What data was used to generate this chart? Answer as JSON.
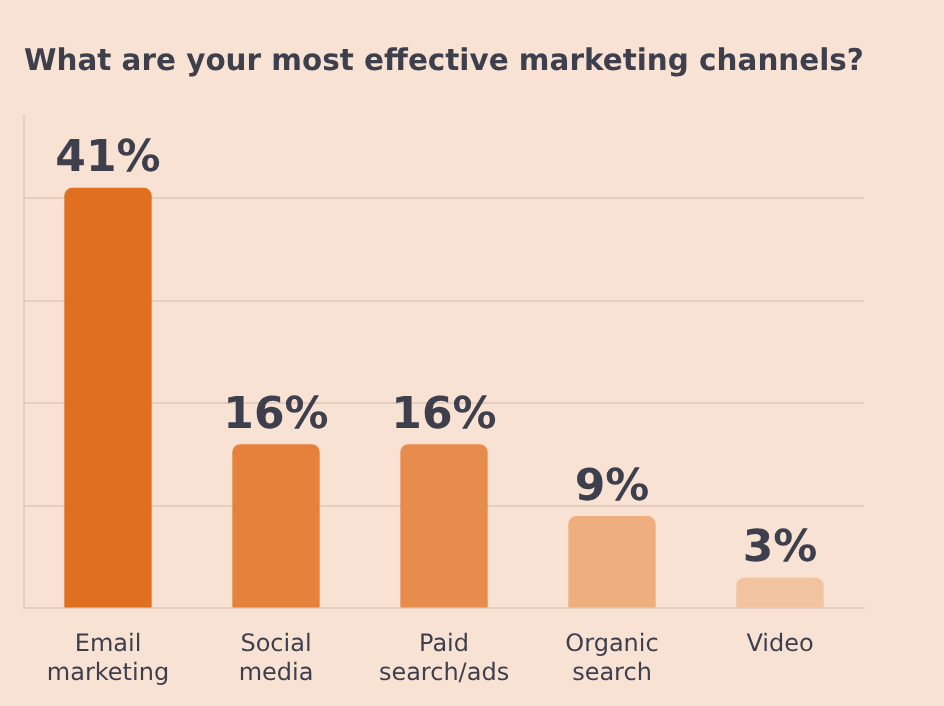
{
  "chart_data": {
    "type": "bar",
    "title": "What are your most effective marketing channels?",
    "categories": [
      "Email marketing",
      "Social media",
      "Paid search/ads",
      "Organic search",
      "Video"
    ],
    "values": [
      41,
      16,
      16,
      9,
      3
    ],
    "value_labels": [
      "41%",
      "16%",
      "16%",
      "9%",
      "3%"
    ],
    "colors": [
      "#e07020",
      "#e5813a",
      "#e88c4e",
      "#eeae7e",
      "#f2c4a0"
    ],
    "ylim": [
      0,
      48
    ],
    "yticks": [
      {
        "value": 0,
        "label": null
      },
      {
        "value": 10,
        "label": null
      },
      {
        "value": 20,
        "label": null
      },
      {
        "value": 30,
        "label": null
      },
      {
        "value": 40,
        "label": null
      }
    ],
    "tick_labels": "x",
    "grid": "y"
  }
}
